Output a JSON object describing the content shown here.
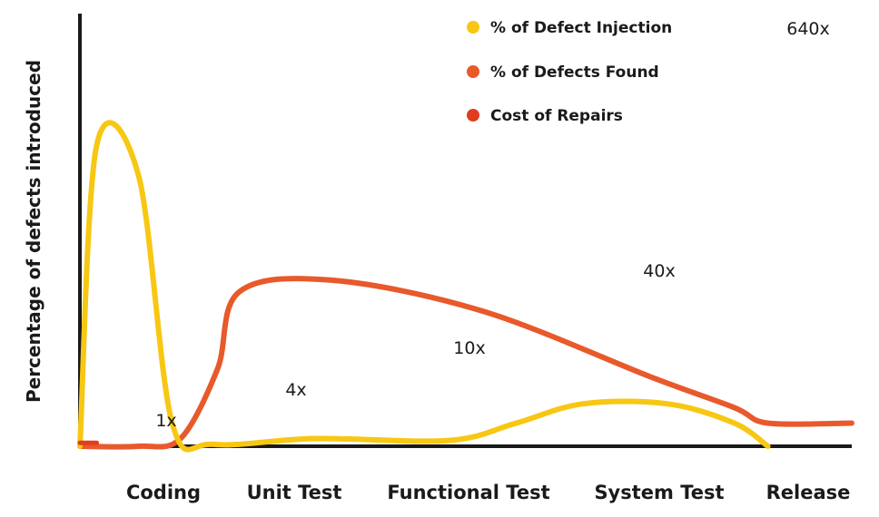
{
  "chart_data": {
    "type": "line",
    "title": "",
    "xlabel": "",
    "ylabel": "Percentage of defects introduced",
    "categories": [
      "Coding",
      "Unit Test",
      "Functional Test",
      "System Test",
      "Release"
    ],
    "series": [
      {
        "name": "% of Defect Injection",
        "color": "#f7c713",
        "points": [
          [
            0.0,
            0
          ],
          [
            0.1,
            78
          ],
          [
            0.35,
            70
          ],
          [
            0.55,
            6
          ],
          [
            0.8,
            0.5
          ],
          [
            1.4,
            2
          ],
          [
            2.2,
            1.5
          ],
          [
            2.6,
            6
          ],
          [
            3.0,
            11
          ],
          [
            3.5,
            11
          ],
          [
            3.9,
            6
          ],
          [
            4.1,
            0
          ]
        ]
      },
      {
        "name": "% of Defects Found",
        "color": "#e8592b",
        "points": [
          [
            0.0,
            0
          ],
          [
            0.35,
            0
          ],
          [
            0.6,
            2
          ],
          [
            0.82,
            20
          ],
          [
            0.95,
            40
          ],
          [
            1.5,
            43
          ],
          [
            2.4,
            35
          ],
          [
            3.4,
            18
          ],
          [
            3.9,
            10
          ],
          [
            4.1,
            6
          ],
          [
            4.6,
            6
          ]
        ]
      },
      {
        "name": "Cost of Repairs",
        "color": "#e03c1e",
        "points": [
          [
            0.0,
            0.9
          ],
          [
            0.1,
            0.9
          ]
        ]
      }
    ],
    "annotations": [
      "1x",
      "4x",
      "10x",
      "40x",
      "640x"
    ],
    "ylim": [
      0,
      105
    ],
    "xlim": [
      0,
      4.6
    ],
    "legend_position": "top-right"
  }
}
